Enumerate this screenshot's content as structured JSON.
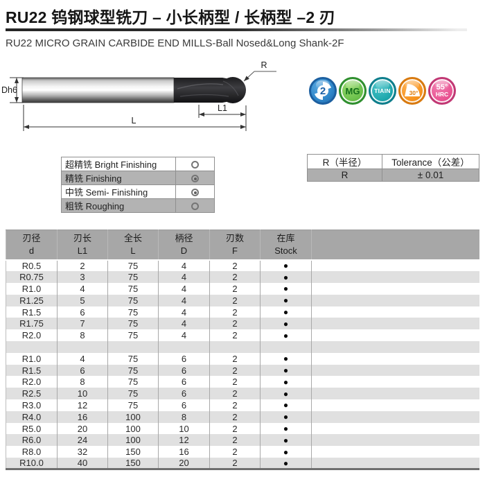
{
  "header": {
    "title": "RU22 钨钢球型铣刀 – 小长柄型 / 长柄型 –2 刃",
    "subtitle": "RU22 MICRO GRAIN CARBIDE END MILLS-Ball Nosed&Long Shank-2F"
  },
  "diagram": {
    "labels": {
      "shank_dia": "Dh6",
      "flute_len": "L1",
      "overall_len": "L",
      "radius": "R"
    }
  },
  "badges": [
    {
      "name": "flutes",
      "label": "2",
      "bg": "#2f86c9",
      "border": "#1c5fa0"
    },
    {
      "name": "micro-grain",
      "label": "MG",
      "bg": "#6dc24d",
      "border": "#2f8f2f"
    },
    {
      "name": "coating",
      "label": "TIAIN",
      "bg": "#1fa9ae",
      "border": "#0e7e8c"
    },
    {
      "name": "helix-angle",
      "label": "30°",
      "bg": "#f79420",
      "border": "#d87a10"
    },
    {
      "name": "hardness",
      "label": "55°",
      "label2": "HRC",
      "bg": "#ea5593",
      "border": "#c13874"
    }
  ],
  "finishing_table": {
    "rows": [
      {
        "label": "超精铣 Bright Finishing",
        "mark": "open"
      },
      {
        "label": "精铣 Finishing",
        "mark": "bullseye"
      },
      {
        "label": "中铣 Semi- Finishing",
        "mark": "bullseye"
      },
      {
        "label": "粗铣 Roughing",
        "mark": "open"
      }
    ]
  },
  "tolerance_table": {
    "headers": [
      "R（半径）",
      "Tolerance（公差）"
    ],
    "rows": [
      [
        "R",
        "± 0.01"
      ]
    ]
  },
  "main_table": {
    "headers": [
      {
        "cn": "刃径",
        "en": "d"
      },
      {
        "cn": "刃长",
        "en": "L1"
      },
      {
        "cn": "全长",
        "en": "L"
      },
      {
        "cn": "柄径",
        "en": "D"
      },
      {
        "cn": "刃数",
        "en": "F"
      },
      {
        "cn": "在库",
        "en": "Stock"
      }
    ],
    "stock_symbol": "●",
    "groups": [
      {
        "rows": [
          [
            "R0.5",
            "2",
            "75",
            "4",
            "2"
          ],
          [
            "R0.75",
            "3",
            "75",
            "4",
            "2"
          ],
          [
            "R1.0",
            "4",
            "75",
            "4",
            "2"
          ],
          [
            "R1.25",
            "5",
            "75",
            "4",
            "2"
          ],
          [
            "R1.5",
            "6",
            "75",
            "4",
            "2"
          ],
          [
            "R1.75",
            "7",
            "75",
            "4",
            "2"
          ],
          [
            "R2.0",
            "8",
            "75",
            "4",
            "2"
          ]
        ]
      },
      {
        "rows": [
          [
            "R1.0",
            "4",
            "75",
            "6",
            "2"
          ],
          [
            "R1.5",
            "6",
            "75",
            "6",
            "2"
          ],
          [
            "R2.0",
            "8",
            "75",
            "6",
            "2"
          ],
          [
            "R2.5",
            "10",
            "75",
            "6",
            "2"
          ],
          [
            "R3.0",
            "12",
            "75",
            "6",
            "2"
          ],
          [
            "R4.0",
            "16",
            "100",
            "8",
            "2"
          ],
          [
            "R5.0",
            "20",
            "100",
            "10",
            "2"
          ],
          [
            "R6.0",
            "24",
            "100",
            "12",
            "2"
          ],
          [
            "R8.0",
            "32",
            "150",
            "16",
            "2"
          ],
          [
            "R10.0",
            "40",
            "150",
            "20",
            "2"
          ]
        ]
      }
    ]
  },
  "colors": {
    "table_header_gray": "#a7a7a7",
    "row_alt_gray": "#e0e0e0",
    "small_table_gray": "#b3b3b3",
    "stock_dot": "#0c0c0c"
  }
}
